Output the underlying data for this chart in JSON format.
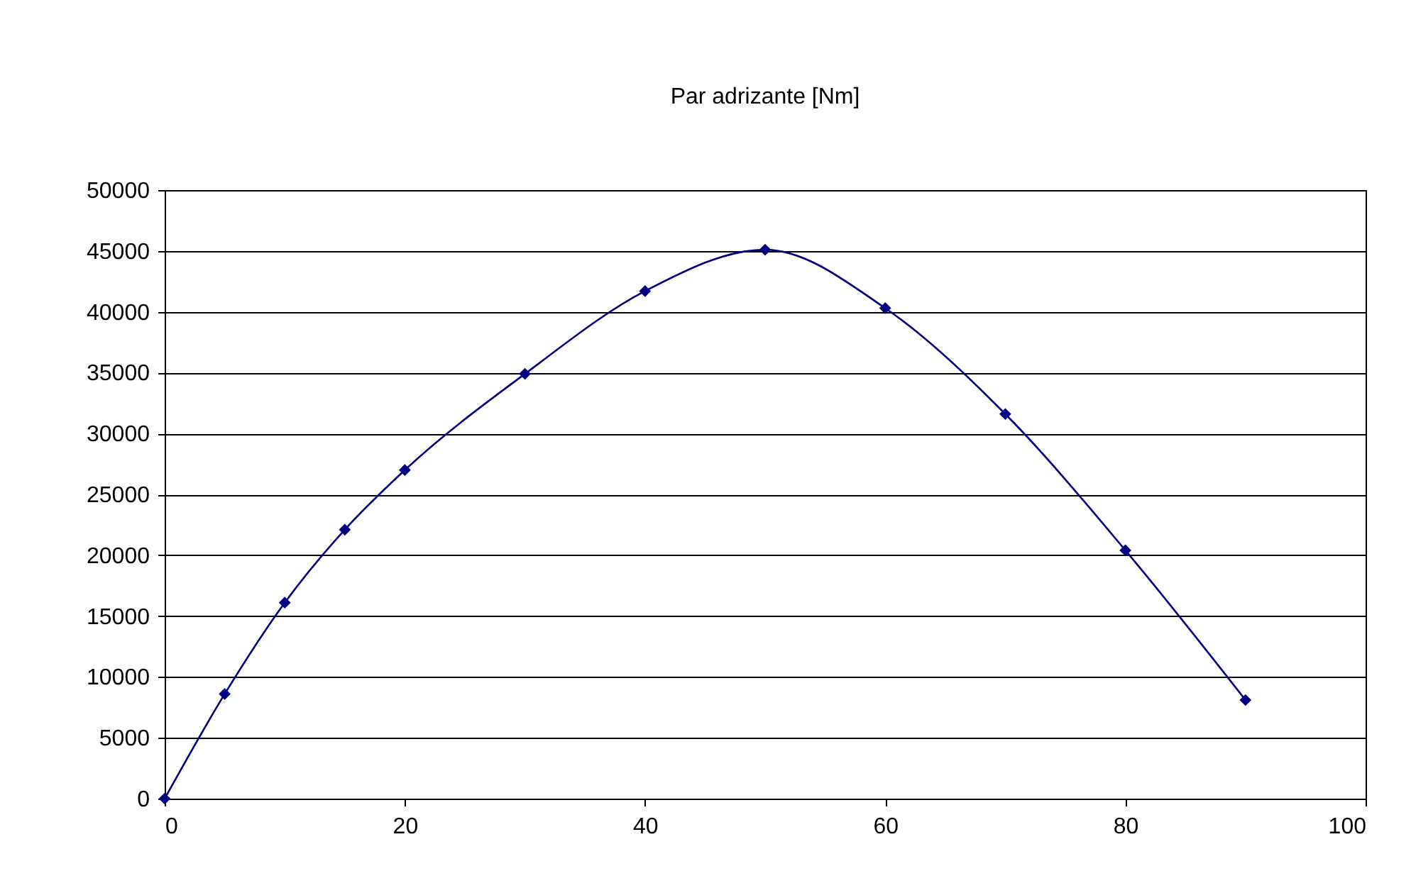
{
  "chart_data": {
    "type": "line",
    "title": "Par adrizante [Nm]",
    "x": [
      0,
      5,
      10,
      15,
      20,
      30,
      40,
      50,
      60,
      70,
      80,
      90
    ],
    "series": [
      {
        "color": "#000080",
        "values": [
          0,
          8600,
          16100,
          22100,
          27000,
          34900,
          41700,
          45100,
          40300,
          31600,
          20400,
          8100
        ]
      }
    ],
    "xlim": [
      0,
      100
    ],
    "xticks": [
      0,
      20,
      40,
      60,
      80,
      100
    ],
    "ylim": [
      0,
      50000
    ],
    "yticks": [
      0,
      5000,
      10000,
      15000,
      20000,
      25000,
      30000,
      35000,
      40000,
      45000,
      50000
    ],
    "grid": "y",
    "marker": "diamond",
    "line_style": "solid"
  }
}
